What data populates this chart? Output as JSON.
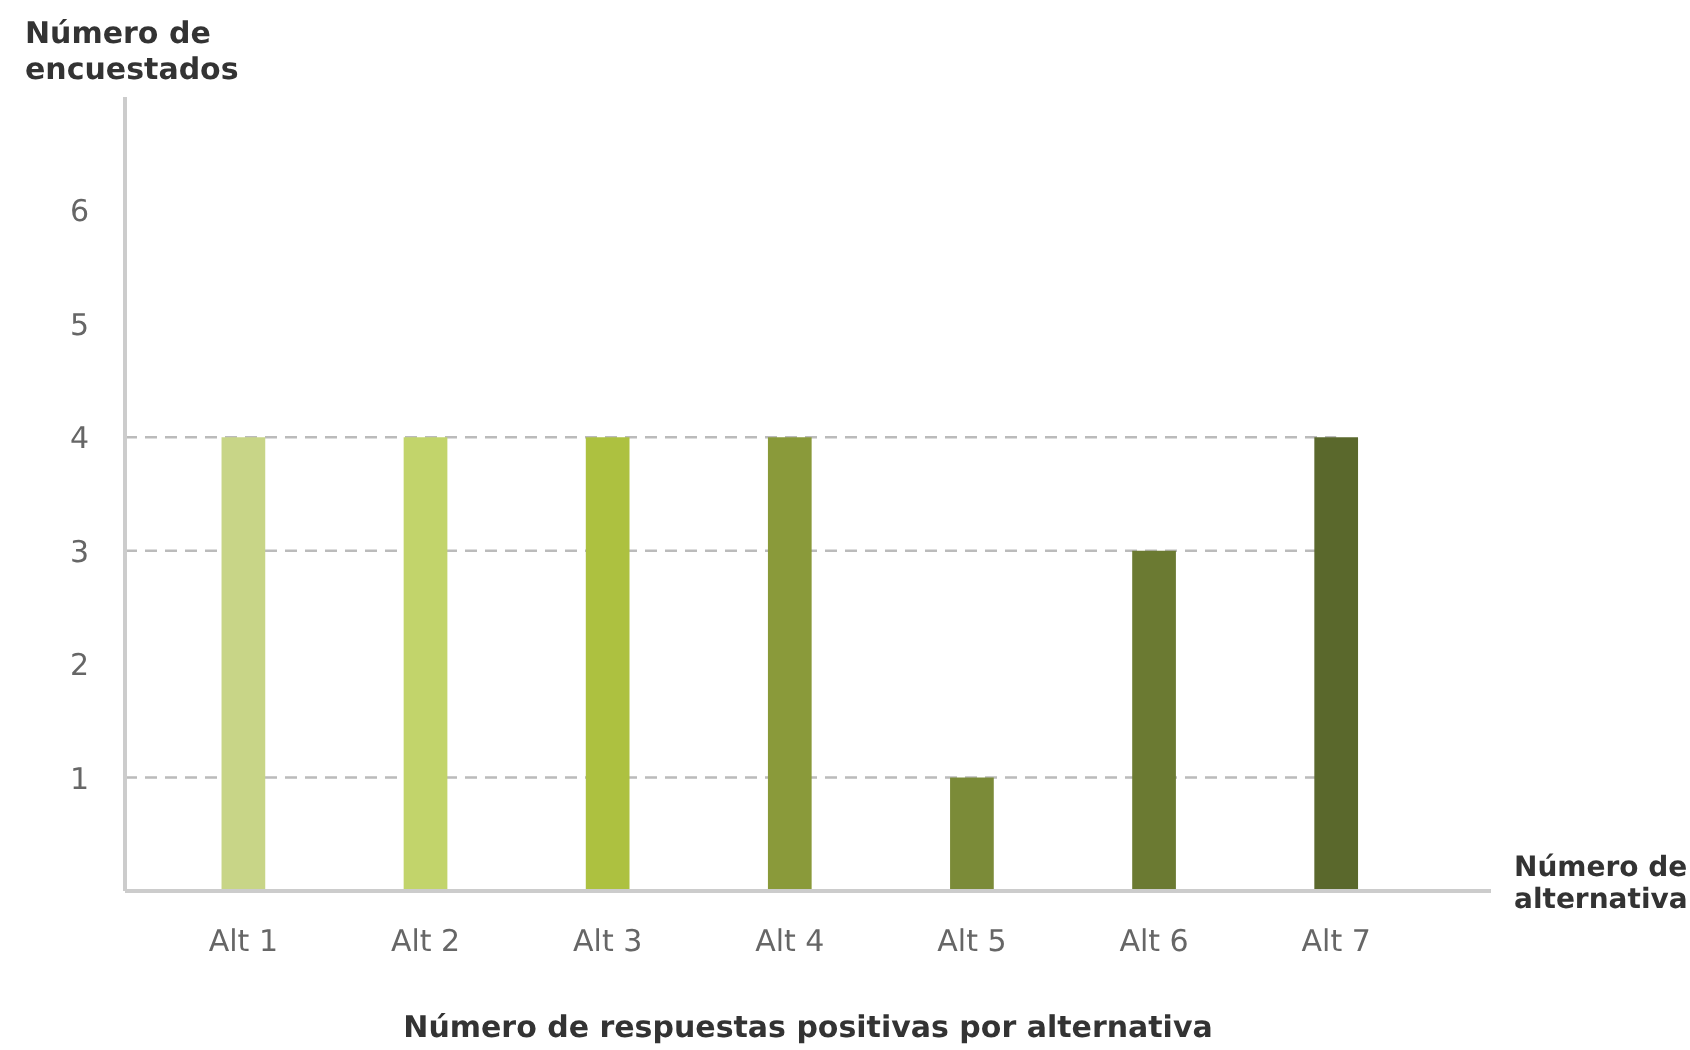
{
  "chart_data": {
    "type": "bar",
    "ylabel": "Número de\nencuestados",
    "xlabel": "Número de respuestas positivas por alternativa",
    "annotations": [
      "Número de\nalternativa"
    ],
    "categories": [
      "Alt 1",
      "Alt 2",
      "Alt 3",
      "Alt 4",
      "Alt 5",
      "Alt 6",
      "Alt 7"
    ],
    "values": [
      4,
      4,
      4,
      4,
      1,
      3,
      4
    ],
    "colors": [
      "#c8d587",
      "#c2d46b",
      "#adc140",
      "#8a9a3a",
      "#7b8b38",
      "#6b7a32",
      "#5a682c"
    ],
    "ylim": [
      0,
      7
    ],
    "yticks": [
      1,
      2,
      3,
      4,
      5,
      6
    ],
    "ref_lines": [
      {
        "axis": "y",
        "value": 1,
        "line_style": "dashed",
        "color": "#bbbbbb"
      },
      {
        "axis": "y",
        "value": 3,
        "line_style": "dashed",
        "color": "#bbbbbb"
      },
      {
        "axis": "y",
        "value": 4,
        "line_style": "dashed",
        "color": "#bbbbbb"
      }
    ],
    "grid": false
  }
}
